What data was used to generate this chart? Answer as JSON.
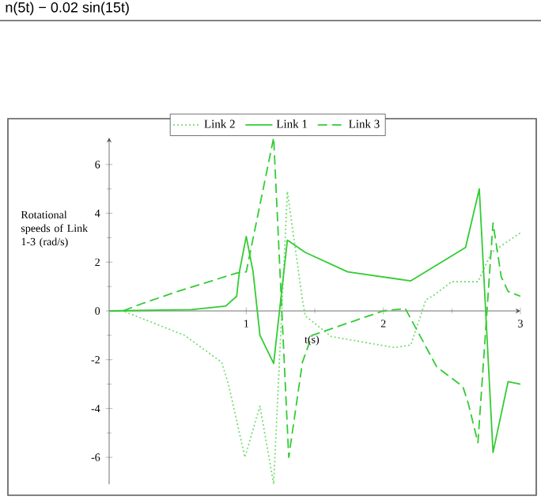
{
  "chart_data": {
    "type": "line",
    "xlabel": "t(s)",
    "ylabel": "Rotational speeds of Link 1-3 (rad/s)",
    "annotations": [
      "n(5t) − 0.02 sin(15t)"
    ],
    "xlim": [
      0,
      3
    ],
    "ylim": [
      -7.1,
      7.1
    ],
    "xticks": [
      1,
      2,
      3
    ],
    "yticks": [
      -6,
      -4,
      -2,
      0,
      2,
      4,
      6
    ],
    "grid": false,
    "legend": "top",
    "marker": "none",
    "series": [
      {
        "name": "Link 2",
        "color": "#77dd77",
        "line_style": "dotted",
        "x": [
          0,
          0.1,
          0.55,
          0.82,
          0.87,
          0.99,
          1.1,
          1.2,
          1.3,
          1.41,
          1.43,
          1.62,
          2.08,
          2.2,
          2.31,
          2.37,
          2.5,
          2.69,
          2.79,
          3.0
        ],
        "values": [
          0,
          0,
          -1.0,
          -2.1,
          -3.0,
          -6.0,
          -3.9,
          -7.1,
          4.9,
          0.45,
          -0.2,
          -1.05,
          -1.5,
          -1.4,
          0.45,
          0.65,
          1.2,
          1.2,
          2.4,
          3.2
        ]
      },
      {
        "name": "Link 1",
        "color": "#33cc33",
        "line_style": "solid",
        "x": [
          0,
          0.6,
          0.85,
          0.93,
          0.95,
          1.0,
          1.05,
          1.1,
          1.2,
          1.3,
          1.43,
          1.74,
          2.2,
          2.6,
          2.7,
          2.8,
          2.91,
          3.0
        ],
        "values": [
          0,
          0.05,
          0.2,
          0.6,
          1.6,
          3.05,
          1.6,
          -1.0,
          -2.15,
          2.9,
          2.4,
          1.6,
          1.23,
          2.6,
          5.0,
          -5.8,
          -2.9,
          -3.0
        ]
      },
      {
        "name": "Link 3",
        "color": "#33cc33",
        "line_style": "dashed",
        "x": [
          0,
          0.1,
          0.24,
          0.5,
          0.93,
          1.0,
          1.2,
          1.31,
          1.41,
          1.48,
          2.0,
          2.16,
          2.39,
          2.58,
          2.62,
          2.69,
          2.8,
          2.86,
          2.91,
          3.0
        ],
        "values": [
          0,
          0,
          0.3,
          0.8,
          1.55,
          1.6,
          7.1,
          -6.0,
          -2.1,
          -1.0,
          0,
          0.1,
          -2.3,
          -3.1,
          -3.8,
          -5.4,
          3.6,
          1.4,
          0.8,
          0.6
        ]
      }
    ]
  }
}
